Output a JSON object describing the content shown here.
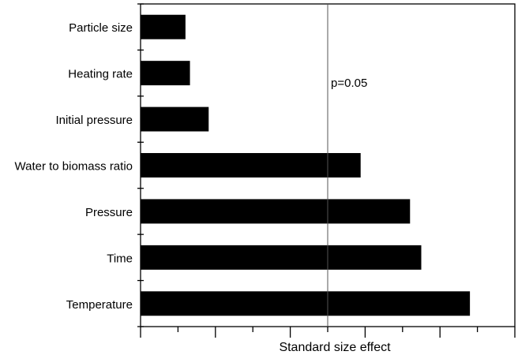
{
  "chart_data": {
    "type": "bar",
    "orientation": "horizontal",
    "categories": [
      "Particle size",
      "Heating rate",
      "Initial pressure",
      "Water to biomass ratio",
      "Pressure",
      "Time",
      "Temperature"
    ],
    "values": [
      0.6,
      0.66,
      0.91,
      2.94,
      3.6,
      3.75,
      4.4
    ],
    "xlabel": "Standard size effect",
    "ylabel": "",
    "xlim": [
      0,
      5
    ],
    "reference_line": {
      "value": 2.5,
      "label": "p=0.05"
    },
    "bar_color": "#000000",
    "grid": false
  }
}
